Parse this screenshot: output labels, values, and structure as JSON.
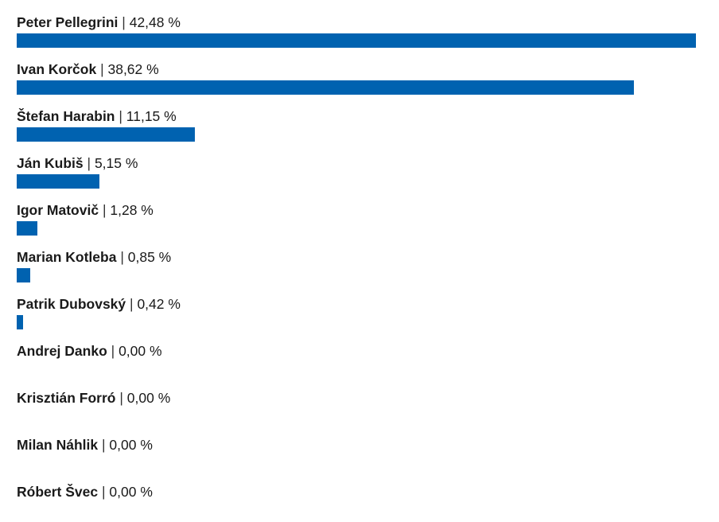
{
  "chart_data": {
    "type": "bar",
    "orientation": "horizontal",
    "unit": "%",
    "xlim": [
      0,
      42.48
    ],
    "grid": false,
    "legend": "none",
    "bar_color": "#0062b0",
    "separator": "|",
    "series": [
      {
        "categories": [
          "Peter Pellegrini",
          "Ivan Korčok",
          "Štefan Harabin",
          "Ján Kubiš",
          "Igor Matovič",
          "Marian Kotleba",
          "Patrik Dubovský",
          "Andrej Danko",
          "Krisztián Forró",
          "Milan Náhlik",
          "Róbert Švec"
        ],
        "values": [
          42.48,
          38.62,
          11.15,
          5.15,
          1.28,
          0.85,
          0.42,
          0.0,
          0.0,
          0.0,
          0.0
        ],
        "value_labels": [
          "42,48 %",
          "38,62 %",
          "11,15 %",
          "5,15 %",
          "1,28 %",
          "0,85 %",
          "0,42 %",
          "0,00 %",
          "0,00 %",
          "0,00 %",
          "0,00 %"
        ]
      }
    ]
  }
}
